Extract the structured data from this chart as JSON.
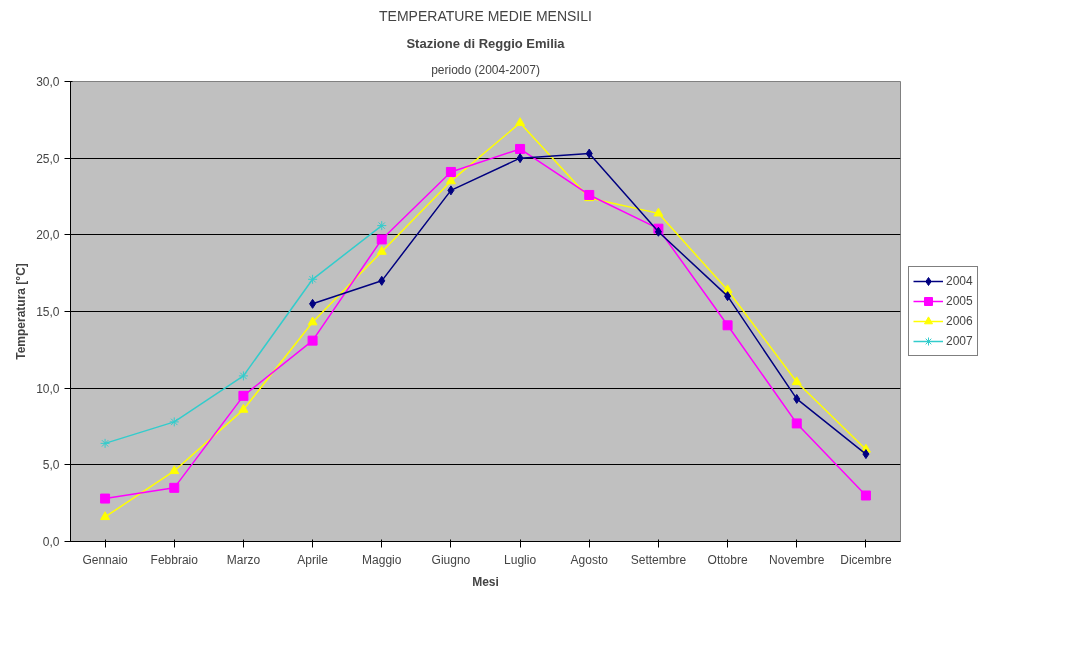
{
  "chart_data": {
    "type": "line",
    "title": "TEMPERATURE MEDIE MENSILI",
    "subtitle": "Stazione di Reggio Emilia",
    "annotations": [
      "periodo (2004-2007)"
    ],
    "xlabel": "Mesi",
    "ylabel": "Temperatura [°C]",
    "categories": [
      "Gennaio",
      "Febbraio",
      "Marzo",
      "Aprile",
      "Maggio",
      "Giugno",
      "Luglio",
      "Agosto",
      "Settembre",
      "Ottobre",
      "Novembre",
      "Dicembre"
    ],
    "series": [
      {
        "name": "2004",
        "color": "#000080",
        "marker": "diamond",
        "values": [
          null,
          null,
          null,
          15.5,
          17.0,
          22.9,
          25.0,
          25.3,
          20.2,
          16.0,
          9.3,
          5.7
        ]
      },
      {
        "name": "2005",
        "color": "#ff00ff",
        "marker": "square",
        "values": [
          2.8,
          3.5,
          9.5,
          13.1,
          19.7,
          24.1,
          25.6,
          22.6,
          20.4,
          14.1,
          7.7,
          3.0
        ]
      },
      {
        "name": "2006",
        "color": "#ffff00",
        "marker": "triangle",
        "values": [
          1.6,
          4.6,
          8.6,
          14.3,
          18.9,
          23.5,
          27.3,
          22.4,
          21.4,
          16.4,
          10.4,
          6.0
        ]
      },
      {
        "name": "2007",
        "color": "#33cccc",
        "marker": "cross",
        "values": [
          6.4,
          7.8,
          10.8,
          17.1,
          20.6,
          null,
          null,
          null,
          null,
          null,
          null,
          null
        ]
      }
    ],
    "ylim": [
      0,
      30
    ],
    "yticks": [
      {
        "value": 0,
        "label": "0,0"
      },
      {
        "value": 5,
        "label": "5,0"
      },
      {
        "value": 10,
        "label": "10,0"
      },
      {
        "value": 15,
        "label": "15,0"
      },
      {
        "value": 20,
        "label": "20,0"
      },
      {
        "value": 25,
        "label": "25,0"
      },
      {
        "value": 30,
        "label": "30,0"
      }
    ],
    "grid": "y",
    "legend": "right",
    "line_style": "solid"
  }
}
